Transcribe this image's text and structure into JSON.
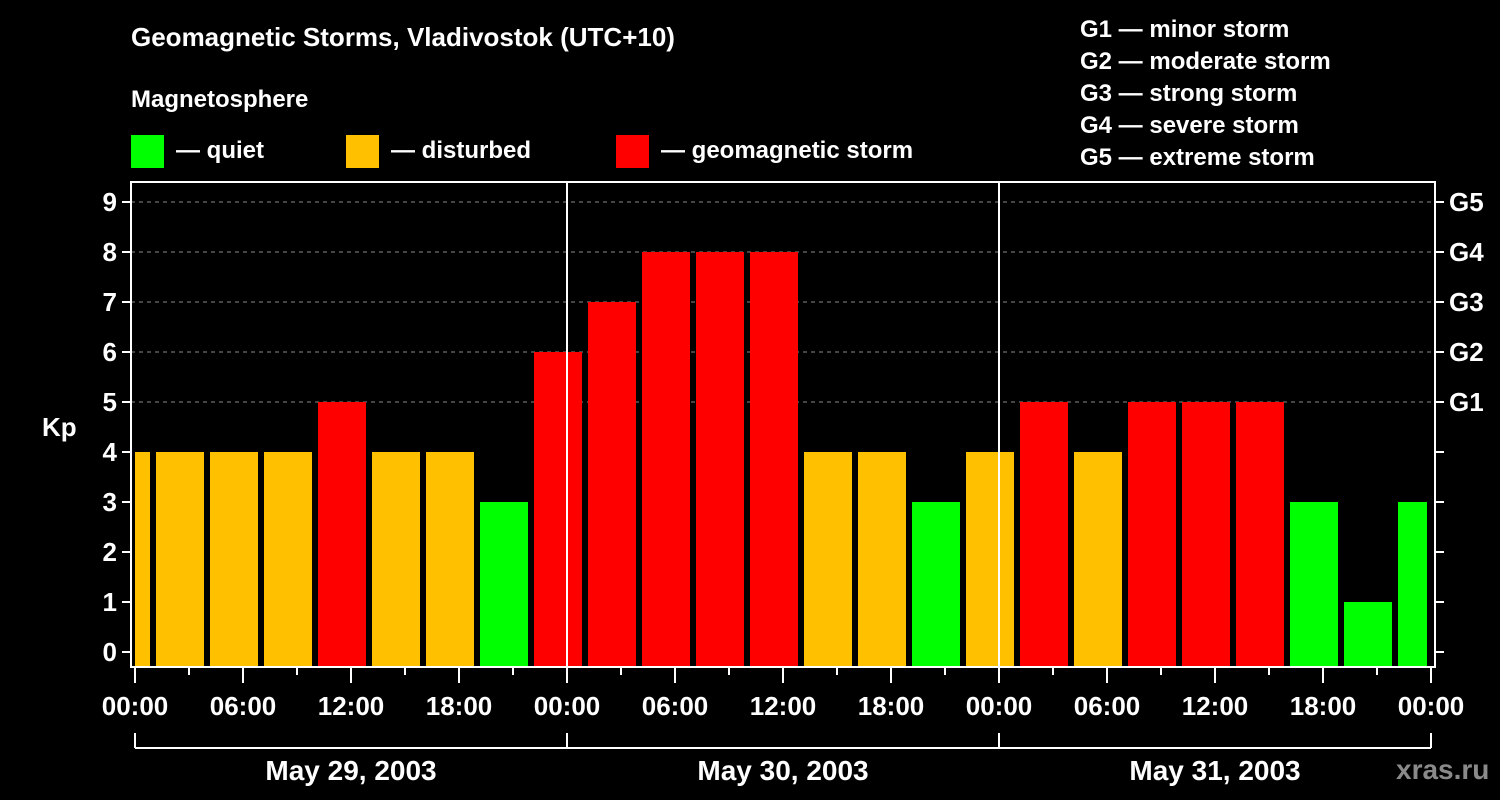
{
  "title": "Geomagnetic Storms, Vladivostok (UTC+10)",
  "legend": {
    "heading": "Magnetosphere",
    "items": [
      {
        "label": "— quiet",
        "color": "#00ff00"
      },
      {
        "label": "— disturbed",
        "color": "#ffc000"
      },
      {
        "label": "— geomagnetic storm",
        "color": "#ff0000"
      }
    ]
  },
  "g_scale_legend": [
    "G1 — minor storm",
    "G2 — moderate storm",
    "G3 — strong storm",
    "G4 — severe storm",
    "G5 — extreme storm"
  ],
  "watermark": "xras.ru",
  "chart_data": {
    "type": "bar",
    "title": "Geomagnetic Storms, Vladivostok (UTC+10)",
    "xlabel": "",
    "ylabel": "Kp",
    "ylim": [
      0,
      9
    ],
    "grid": "horizontal dashed lines at Kp 5-9",
    "y_ticks": [
      0,
      1,
      2,
      3,
      4,
      5,
      6,
      7,
      8,
      9
    ],
    "right_axis_labels": [
      {
        "kp": 5,
        "label": "G1"
      },
      {
        "kp": 6,
        "label": "G2"
      },
      {
        "kp": 7,
        "label": "G3"
      },
      {
        "kp": 8,
        "label": "G4"
      },
      {
        "kp": 9,
        "label": "G5"
      }
    ],
    "x_tick_labels": [
      "00:00",
      "06:00",
      "12:00",
      "18:00",
      "00:00",
      "06:00",
      "12:00",
      "18:00",
      "00:00",
      "06:00",
      "12:00",
      "18:00",
      "00:00"
    ],
    "dates": [
      "May 29, 2003",
      "May 30, 2003",
      "May 31, 2003"
    ],
    "bar_interval_hours": 3,
    "values": [
      4,
      4,
      4,
      4,
      5,
      4,
      4,
      3,
      6,
      7,
      8,
      8,
      8,
      4,
      4,
      3,
      4,
      5,
      4,
      5,
      5,
      5,
      3,
      1,
      3
    ],
    "categories_status": [
      "disturbed",
      "disturbed",
      "disturbed",
      "disturbed",
      "storm",
      "disturbed",
      "disturbed",
      "quiet",
      "storm",
      "storm",
      "storm",
      "storm",
      "storm",
      "disturbed",
      "disturbed",
      "quiet",
      "disturbed",
      "storm",
      "disturbed",
      "storm",
      "storm",
      "storm",
      "quiet",
      "quiet",
      "quiet"
    ],
    "colors": {
      "quiet": "#00ff00",
      "disturbed": "#ffc000",
      "storm": "#ff0000"
    },
    "legend_position": "top"
  }
}
